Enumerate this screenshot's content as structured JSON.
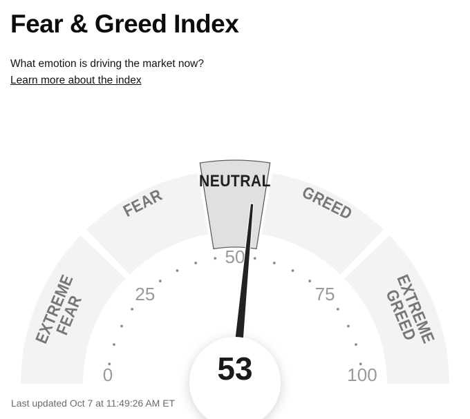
{
  "page": {
    "title": "Fear & Greed Index",
    "subtitle": "What emotion is driving the market now?",
    "link_text": "Learn more about the index",
    "footer": "Last updated Oct 7 at 11:49:26 AM ET"
  },
  "chart_data": {
    "type": "gauge",
    "title": "Fear & Greed Index",
    "value": 53,
    "value_label": "53",
    "min": 0,
    "max": 100,
    "current_zone": "NEUTRAL",
    "zones": [
      {
        "label": "EXTREME FEAR",
        "start": 0,
        "end": 25,
        "highlighted": false
      },
      {
        "label": "FEAR",
        "start": 25,
        "end": 45,
        "highlighted": false
      },
      {
        "label": "NEUTRAL",
        "start": 45,
        "end": 55,
        "highlighted": true
      },
      {
        "label": "GREED",
        "start": 55,
        "end": 75,
        "highlighted": false
      },
      {
        "label": "EXTREME GREED",
        "start": 75,
        "end": 100,
        "highlighted": false
      }
    ],
    "axis_tick_labels": [
      "0",
      "25",
      "50",
      "75",
      "100"
    ],
    "minor_tick_step": 5,
    "colors": {
      "zone_fill": "#f3f3f3",
      "zone_highlight_fill": "#e0e0e0",
      "zone_highlight_stroke": "#5e5e5e",
      "zone_label": "#777777",
      "zone_label_highlight": "#1f1f1f",
      "tick_label": "#999999",
      "minor_dot": "#8a8a8a",
      "needle": "#222222",
      "value_text": "#1a1a1a"
    }
  }
}
